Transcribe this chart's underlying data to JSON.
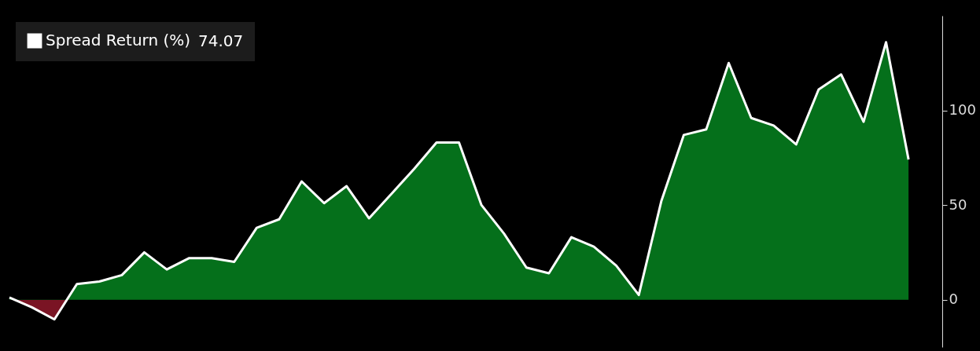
{
  "chart_data": {
    "type": "area",
    "categories": [
      null,
      null,
      null,
      null,
      null,
      null,
      null,
      null,
      null,
      null,
      null,
      null,
      null,
      null,
      null,
      null,
      null,
      null,
      null,
      null,
      null,
      null,
      null,
      null,
      null,
      null,
      null,
      null,
      null,
      null,
      null,
      null,
      null,
      null,
      null,
      null,
      null,
      null,
      null,
      null,
      null
    ],
    "series": [
      {
        "name": "Spread Return (%)",
        "color": "#ffffff",
        "values": [
          1.2,
          -4,
          -10.4,
          8.3,
          9.6,
          13,
          25,
          16,
          22,
          22,
          20,
          38,
          42.5,
          62.5,
          51,
          60,
          43,
          56,
          69,
          83,
          83,
          50,
          35,
          17,
          14,
          33,
          28,
          18,
          2.5,
          52,
          87,
          90,
          125,
          96,
          92,
          82,
          111,
          119,
          94,
          136,
          74.07
        ]
      }
    ],
    "colors": [
      "#05701b",
      "#7a1424"
    ],
    "annotations": [
      "74.07"
    ],
    "ylim": [
      -25,
      150
    ],
    "yticks": [
      0,
      50,
      100
    ],
    "legend": "top left",
    "grid": false
  }
}
